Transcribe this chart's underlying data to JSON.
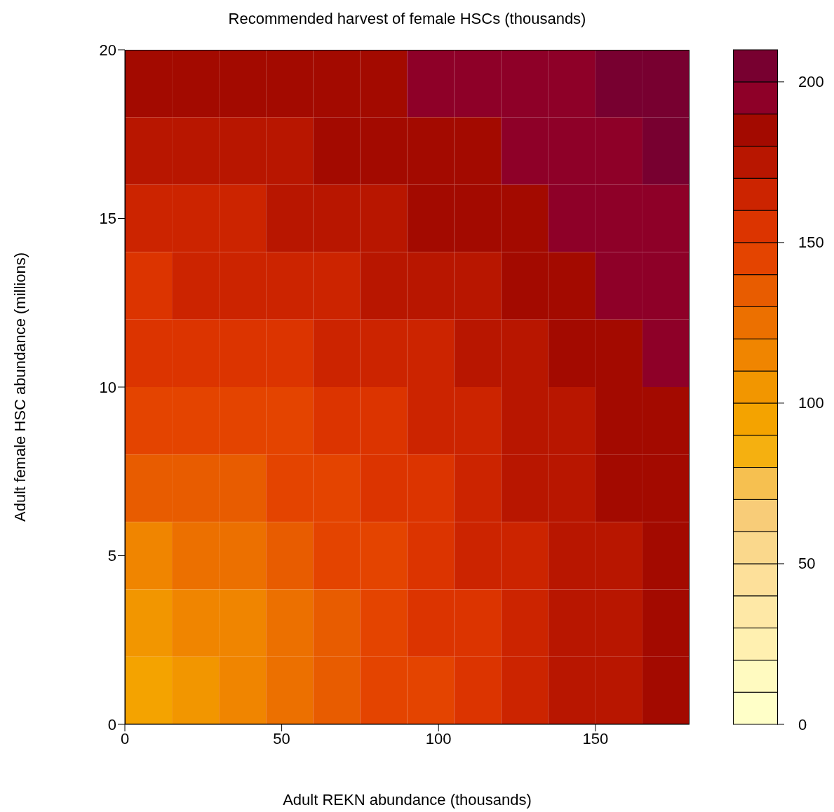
{
  "chart_data": {
    "type": "heatmap",
    "title": "Recommended harvest of female HSCs (thousands)",
    "xlabel": "Adult REKN abundance (thousands)",
    "ylabel": "Adult female HSC abundance (millions)",
    "x": [
      7.5,
      22.5,
      37.5,
      52.5,
      67.5,
      82.5,
      97.5,
      112.5,
      127.5,
      142.5,
      157.5,
      172.5
    ],
    "y": [
      19,
      17,
      15,
      13,
      11,
      9,
      7,
      5,
      3,
      1
    ],
    "cells": [
      [
        182,
        182,
        183,
        185,
        186,
        188,
        191,
        193,
        196,
        198,
        201,
        203
      ],
      [
        175,
        175,
        177,
        178,
        180,
        183,
        186,
        188,
        191,
        194,
        197,
        200
      ],
      [
        167,
        168,
        169,
        172,
        174,
        177,
        180,
        184,
        187,
        190,
        194,
        197
      ],
      [
        159,
        160,
        162,
        164,
        167,
        171,
        175,
        178,
        183,
        187,
        190,
        194
      ],
      [
        150,
        151,
        153,
        156,
        160,
        164,
        169,
        174,
        178,
        183,
        187,
        191
      ],
      [
        140,
        142,
        145,
        148,
        153,
        158,
        163,
        169,
        174,
        179,
        184,
        189
      ],
      [
        130,
        132,
        136,
        141,
        146,
        152,
        158,
        164,
        170,
        176,
        181,
        186
      ],
      [
        119,
        122,
        127,
        133,
        140,
        147,
        154,
        161,
        167,
        173,
        179,
        184
      ],
      [
        108,
        112,
        119,
        127,
        135,
        143,
        151,
        158,
        165,
        172,
        178,
        183
      ],
      [
        97,
        105,
        115,
        124,
        133,
        141,
        149,
        157,
        164,
        171,
        177,
        182
      ]
    ],
    "xlim": [
      0,
      180
    ],
    "xticks": [
      0,
      50,
      100,
      150
    ],
    "ylim": [
      0,
      20
    ],
    "yticks": [
      0,
      5,
      10,
      15,
      20
    ],
    "clim": [
      0,
      210
    ],
    "cticks": [
      0,
      50,
      100,
      150,
      200
    ]
  }
}
